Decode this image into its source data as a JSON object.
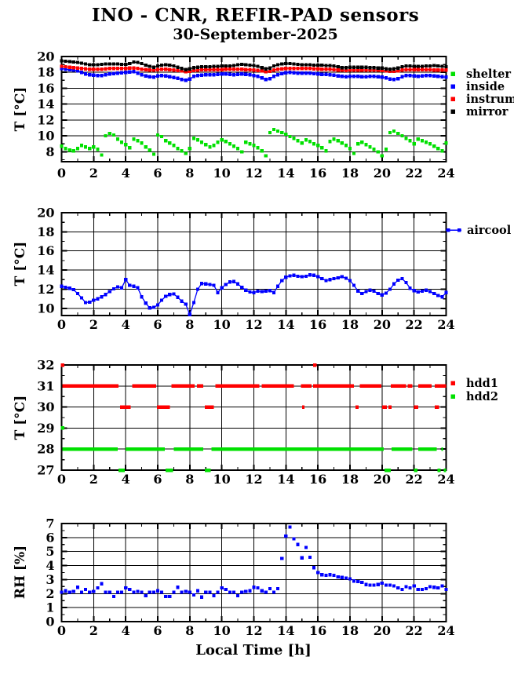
{
  "title": "INO - CNR, REFIR-PAD sensors",
  "subtitle": "30-September-2025",
  "date": "30-September-2025",
  "chart_data": [
    {
      "type": "line",
      "title": "",
      "xlabel": "",
      "ylabel": "T [°C]",
      "xlim": [
        0,
        24
      ],
      "ylim": [
        6.75,
        20
      ],
      "xticks": [
        0,
        2,
        4,
        6,
        8,
        10,
        12,
        14,
        16,
        18,
        20,
        22,
        24
      ],
      "yticks": [
        8,
        10,
        12,
        14,
        16,
        18,
        20
      ],
      "y_minor_step": 1,
      "grid": true,
      "legend_position": "right",
      "series": [
        {
          "name": "shelter",
          "color": "#00e000",
          "kind": "scatter",
          "x_start": 0,
          "x_step": 0.25,
          "values": [
            8.7,
            8.4,
            8.2,
            8.1,
            8.4,
            8.8,
            8.6,
            8.4,
            8.6,
            8.3,
            7.6,
            10.0,
            10.3,
            10.1,
            9.6,
            9.2,
            8.9,
            8.5,
            9.6,
            9.4,
            9.1,
            8.6,
            8.2,
            7.7,
            10.1,
            9.9,
            9.4,
            9.1,
            8.8,
            8.4,
            8.1,
            7.8,
            8.4,
            9.7,
            9.5,
            9.2,
            8.9,
            8.6,
            8.8,
            9.2,
            9.5,
            9.3,
            9.0,
            8.7,
            8.4,
            8.0,
            9.2,
            9.0,
            8.8,
            8.5,
            8.1,
            7.5,
            10.4,
            10.8,
            10.6,
            10.4,
            10.2,
            9.9,
            9.7,
            9.4,
            9.1,
            9.5,
            9.3,
            9.0,
            8.8,
            8.5,
            8.1,
            9.3,
            9.6,
            9.4,
            9.1,
            8.8,
            8.4,
            7.8,
            9.0,
            9.2,
            8.9,
            8.6,
            8.3,
            8.0,
            7.5,
            8.3,
            10.4,
            10.6,
            10.3,
            10.0,
            9.7,
            9.4,
            9.0,
            9.6,
            9.4,
            9.2,
            9.0,
            8.7,
            8.4,
            8.1,
            9.1
          ]
        },
        {
          "name": "inside",
          "color": "#0000ff",
          "kind": "linepoints",
          "x_start": 0,
          "x_step": 0.25,
          "values": [
            18.5,
            18.4,
            18.35,
            18.3,
            18.2,
            18.0,
            17.8,
            17.7,
            17.65,
            17.6,
            17.6,
            17.7,
            17.8,
            17.85,
            17.9,
            17.95,
            18.0,
            18.05,
            18.1,
            17.9,
            17.7,
            17.55,
            17.45,
            17.4,
            17.55,
            17.6,
            17.55,
            17.45,
            17.35,
            17.25,
            17.1,
            17.0,
            17.15,
            17.5,
            17.6,
            17.65,
            17.7,
            17.7,
            17.7,
            17.75,
            17.8,
            17.8,
            17.75,
            17.7,
            17.75,
            17.8,
            17.75,
            17.7,
            17.6,
            17.5,
            17.3,
            17.1,
            17.2,
            17.5,
            17.7,
            17.85,
            17.95,
            18.0,
            17.95,
            17.9,
            17.9,
            17.9,
            17.9,
            17.85,
            17.8,
            17.75,
            17.75,
            17.7,
            17.65,
            17.55,
            17.5,
            17.45,
            17.5,
            17.5,
            17.5,
            17.45,
            17.45,
            17.5,
            17.5,
            17.45,
            17.4,
            17.3,
            17.15,
            17.1,
            17.2,
            17.45,
            17.6,
            17.6,
            17.55,
            17.5,
            17.55,
            17.6,
            17.6,
            17.55,
            17.5,
            17.45,
            17.4
          ]
        },
        {
          "name": "instrum.",
          "color": "#ff0000",
          "kind": "linepoints",
          "x_start": 0,
          "x_step": 0.25,
          "values": [
            18.75,
            18.7,
            18.65,
            18.6,
            18.55,
            18.5,
            18.45,
            18.4,
            18.4,
            18.4,
            18.4,
            18.45,
            18.5,
            18.5,
            18.5,
            18.5,
            18.5,
            18.55,
            18.55,
            18.5,
            18.4,
            18.35,
            18.3,
            18.3,
            18.35,
            18.4,
            18.4,
            18.35,
            18.3,
            18.25,
            18.2,
            18.1,
            18.15,
            18.25,
            18.3,
            18.35,
            18.35,
            18.35,
            18.35,
            18.35,
            18.35,
            18.4,
            18.4,
            18.4,
            18.4,
            18.4,
            18.35,
            18.35,
            18.3,
            18.25,
            18.2,
            18.1,
            18.15,
            18.3,
            18.4,
            18.45,
            18.5,
            18.5,
            18.5,
            18.5,
            18.5,
            18.5,
            18.5,
            18.45,
            18.45,
            18.4,
            18.4,
            18.4,
            18.35,
            18.3,
            18.3,
            18.25,
            18.3,
            18.3,
            18.3,
            18.3,
            18.3,
            18.3,
            18.3,
            18.3,
            18.25,
            18.2,
            18.15,
            18.15,
            18.2,
            18.3,
            18.35,
            18.35,
            18.35,
            18.35,
            18.35,
            18.35,
            18.35,
            18.3,
            18.3,
            18.3,
            18.3
          ]
        },
        {
          "name": "mirror",
          "color": "#000000",
          "kind": "linepoints",
          "x_start": 0,
          "x_step": 0.25,
          "values": [
            19.45,
            19.4,
            19.35,
            19.3,
            19.25,
            19.15,
            19.05,
            18.95,
            18.95,
            18.95,
            19.0,
            19.05,
            19.05,
            19.05,
            19.05,
            19.0,
            19.0,
            19.1,
            19.3,
            19.25,
            19.1,
            18.9,
            18.75,
            18.65,
            18.8,
            18.9,
            18.95,
            18.9,
            18.8,
            18.65,
            18.5,
            18.35,
            18.45,
            18.6,
            18.65,
            18.7,
            18.7,
            18.7,
            18.75,
            18.75,
            18.8,
            18.8,
            18.8,
            18.85,
            18.95,
            19.0,
            18.95,
            18.9,
            18.85,
            18.75,
            18.6,
            18.45,
            18.55,
            18.8,
            18.95,
            19.05,
            19.1,
            19.1,
            19.05,
            19.0,
            18.95,
            18.95,
            18.95,
            18.9,
            18.9,
            18.9,
            18.85,
            18.85,
            18.8,
            18.7,
            18.6,
            18.6,
            18.65,
            18.65,
            18.65,
            18.65,
            18.65,
            18.6,
            18.6,
            18.55,
            18.55,
            18.45,
            18.4,
            18.45,
            18.55,
            18.7,
            18.8,
            18.8,
            18.75,
            18.75,
            18.75,
            18.8,
            18.8,
            18.85,
            18.8,
            18.75,
            18.7
          ]
        }
      ]
    },
    {
      "type": "line",
      "title": "",
      "xlabel": "",
      "ylabel": "T [°C]",
      "xlim": [
        0,
        24
      ],
      "ylim": [
        9.25,
        20
      ],
      "xticks": [
        0,
        2,
        4,
        6,
        8,
        10,
        12,
        14,
        16,
        18,
        20,
        22,
        24
      ],
      "yticks": [
        10,
        12,
        14,
        16,
        18,
        20
      ],
      "y_minor_step": 1,
      "grid": true,
      "legend_position": "right",
      "series": [
        {
          "name": "aircool",
          "color": "#0000ff",
          "kind": "linepoints",
          "legend_style": "linepoint",
          "x_start": 0,
          "x_step": 0.25,
          "values": [
            12.3,
            12.2,
            12.1,
            11.95,
            11.55,
            11.1,
            10.6,
            10.65,
            10.85,
            11.0,
            11.2,
            11.45,
            11.75,
            12.05,
            12.25,
            12.15,
            13.0,
            12.4,
            12.3,
            12.15,
            11.2,
            10.55,
            10.05,
            10.1,
            10.35,
            10.85,
            11.25,
            11.45,
            11.5,
            11.15,
            10.75,
            10.45,
            9.35,
            10.6,
            12.0,
            12.6,
            12.55,
            12.5,
            12.4,
            11.65,
            12.15,
            12.5,
            12.75,
            12.8,
            12.55,
            12.2,
            11.9,
            11.7,
            11.65,
            11.8,
            11.75,
            11.8,
            11.85,
            11.65,
            12.3,
            12.9,
            13.25,
            13.4,
            13.45,
            13.35,
            13.3,
            13.35,
            13.5,
            13.45,
            13.3,
            13.1,
            12.9,
            13.0,
            13.1,
            13.2,
            13.3,
            13.15,
            12.9,
            12.4,
            11.8,
            11.55,
            11.75,
            11.9,
            11.8,
            11.55,
            11.4,
            11.6,
            12.0,
            12.55,
            12.95,
            13.1,
            12.7,
            12.1,
            11.85,
            11.7,
            11.8,
            11.9,
            11.75,
            11.55,
            11.35,
            11.2,
            11.65
          ]
        }
      ]
    },
    {
      "type": "segments",
      "title": "",
      "xlabel": "",
      "ylabel": "T [°C]",
      "xlim": [
        0,
        24
      ],
      "ylim": [
        27,
        32
      ],
      "xticks": [
        0,
        2,
        4,
        6,
        8,
        10,
        12,
        14,
        16,
        18,
        20,
        22,
        24
      ],
      "yticks": [
        27,
        28,
        29,
        30,
        31,
        32
      ],
      "y_minor_step": 0.5,
      "grid": true,
      "legend_position": "right",
      "series": [
        {
          "name": "hdd1",
          "color": "#ff0000",
          "kind": "segments",
          "segments": [
            [
              0.05,
              3.55,
              31
            ],
            [
              4.4,
              5.9,
              31
            ],
            [
              6.85,
              8.3,
              31
            ],
            [
              8.45,
              8.85,
              31
            ],
            [
              9.6,
              12.35,
              31
            ],
            [
              12.5,
              14.5,
              31
            ],
            [
              14.95,
              15.6,
              31
            ],
            [
              15.7,
              18.25,
              31
            ],
            [
              18.6,
              19.95,
              31
            ],
            [
              20.55,
              21.5,
              31
            ],
            [
              21.6,
              21.9,
              31
            ],
            [
              22.25,
              23.1,
              31
            ],
            [
              23.3,
              24,
              31
            ],
            [
              3.65,
              4.3,
              30
            ],
            [
              5.95,
              6.75,
              30
            ],
            [
              8.95,
              9.5,
              30
            ],
            [
              15.0,
              15.15,
              30
            ],
            [
              18.35,
              18.55,
              30
            ],
            [
              20.0,
              20.3,
              30
            ],
            [
              20.4,
              20.6,
              30
            ],
            [
              22.0,
              22.25,
              30
            ],
            [
              23.3,
              23.55,
              30
            ]
          ],
          "points": [
            [
              0.05,
              32
            ],
            [
              15.8,
              32
            ]
          ]
        },
        {
          "name": "hdd2",
          "color": "#00e000",
          "kind": "segments",
          "segments": [
            [
              0.05,
              3.5,
              28
            ],
            [
              4.0,
              6.45,
              28
            ],
            [
              7.0,
              8.85,
              28
            ],
            [
              9.35,
              20.1,
              28
            ],
            [
              20.6,
              21.9,
              28
            ],
            [
              22.25,
              23.4,
              28
            ],
            [
              23.7,
              23.8,
              28
            ],
            [
              3.55,
              3.95,
              27
            ],
            [
              6.5,
              6.95,
              27
            ],
            [
              8.95,
              9.3,
              27
            ],
            [
              20.15,
              20.55,
              27
            ],
            [
              22.0,
              22.2,
              27
            ],
            [
              23.45,
              23.65,
              27
            ],
            [
              23.85,
              24,
              27
            ]
          ],
          "points": [
            [
              0.05,
              29
            ]
          ]
        }
      ]
    },
    {
      "type": "scatter",
      "title": "",
      "xlabel": "Local Time [h]",
      "ylabel": "RH [%]",
      "xlim": [
        0,
        24
      ],
      "ylim": [
        0,
        7
      ],
      "xticks": [
        0,
        2,
        4,
        6,
        8,
        10,
        12,
        14,
        16,
        18,
        20,
        22,
        24
      ],
      "yticks": [
        0,
        1,
        2,
        3,
        4,
        5,
        6,
        7
      ],
      "y_minor_step": 0.5,
      "grid": true,
      "legend_position": "none",
      "series": [
        {
          "name": "RH",
          "color": "#0000ff",
          "kind": "scatter",
          "legend": false,
          "x_start": 0,
          "x_step": 0.25,
          "values": [
            2.1,
            2.2,
            2.1,
            2.15,
            2.45,
            2.1,
            2.3,
            2.1,
            2.15,
            2.4,
            2.7,
            2.1,
            2.1,
            1.8,
            2.1,
            2.1,
            2.4,
            2.3,
            2.1,
            2.15,
            2.1,
            1.85,
            2.1,
            2.1,
            2.2,
            2.1,
            1.8,
            1.8,
            2.1,
            2.45,
            2.1,
            2.15,
            2.1,
            1.9,
            2.2,
            1.75,
            2.1,
            2.1,
            1.85,
            2.1,
            2.4,
            2.3,
            2.1,
            2.1,
            1.85,
            2.1,
            2.15,
            2.2,
            2.45,
            2.4,
            2.2,
            2.1,
            2.35,
            2.1,
            2.35,
            4.5,
            6.1,
            6.75,
            5.9,
            5.5,
            4.55,
            5.3,
            4.6,
            3.85,
            3.5,
            3.35,
            3.3,
            3.35,
            3.3,
            3.2,
            3.15,
            3.1,
            3.05,
            2.9,
            2.85,
            2.8,
            2.65,
            2.6,
            2.6,
            2.65,
            2.75,
            2.6,
            2.6,
            2.55,
            2.4,
            2.3,
            2.5,
            2.4,
            2.55,
            2.3,
            2.3,
            2.35,
            2.5,
            2.45,
            2.4,
            2.55,
            2.3
          ]
        }
      ]
    }
  ]
}
